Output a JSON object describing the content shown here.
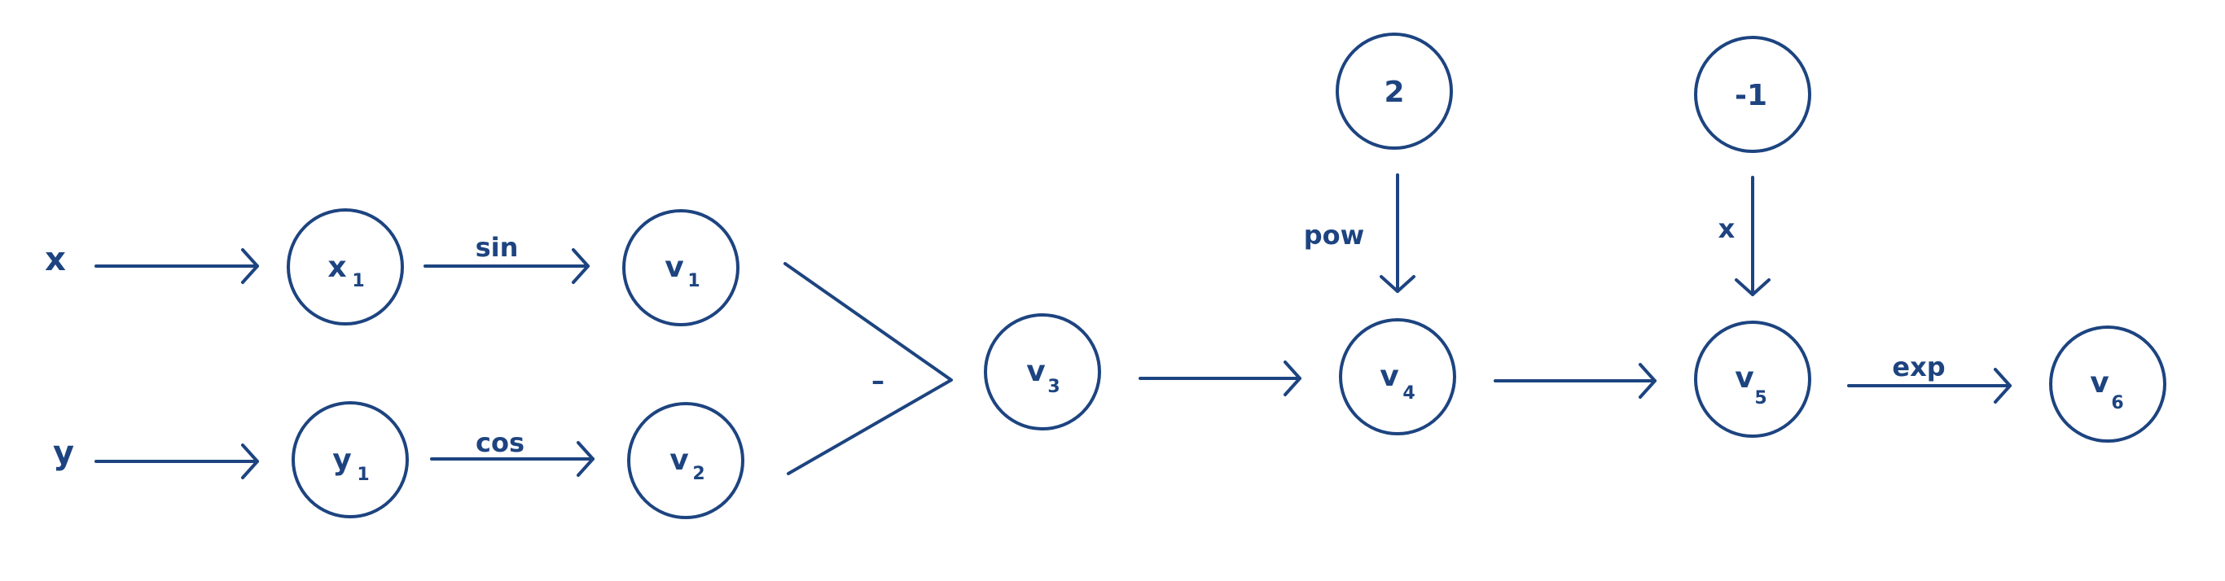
{
  "inputs": {
    "x": "x",
    "y": "y"
  },
  "nodes": {
    "x1": {
      "main": "x",
      "sub": "1"
    },
    "y1": {
      "main": "y",
      "sub": "1"
    },
    "v1": {
      "main": "v",
      "sub": "1"
    },
    "v2": {
      "main": "v",
      "sub": "2"
    },
    "v3": {
      "main": "v",
      "sub": "3"
    },
    "v4": {
      "main": "v",
      "sub": "4"
    },
    "v5": {
      "main": "v",
      "sub": "5"
    },
    "v6": {
      "main": "v",
      "sub": "6"
    },
    "c2": {
      "main": "2"
    },
    "cneg1": {
      "main": "-1"
    }
  },
  "edge_labels": {
    "sin": "sin",
    "cos": "cos",
    "minus": "–",
    "pow": "pow",
    "times": "x",
    "exp": "exp"
  },
  "colors": {
    "ink": "#1d4480",
    "background": "#ffffff"
  }
}
